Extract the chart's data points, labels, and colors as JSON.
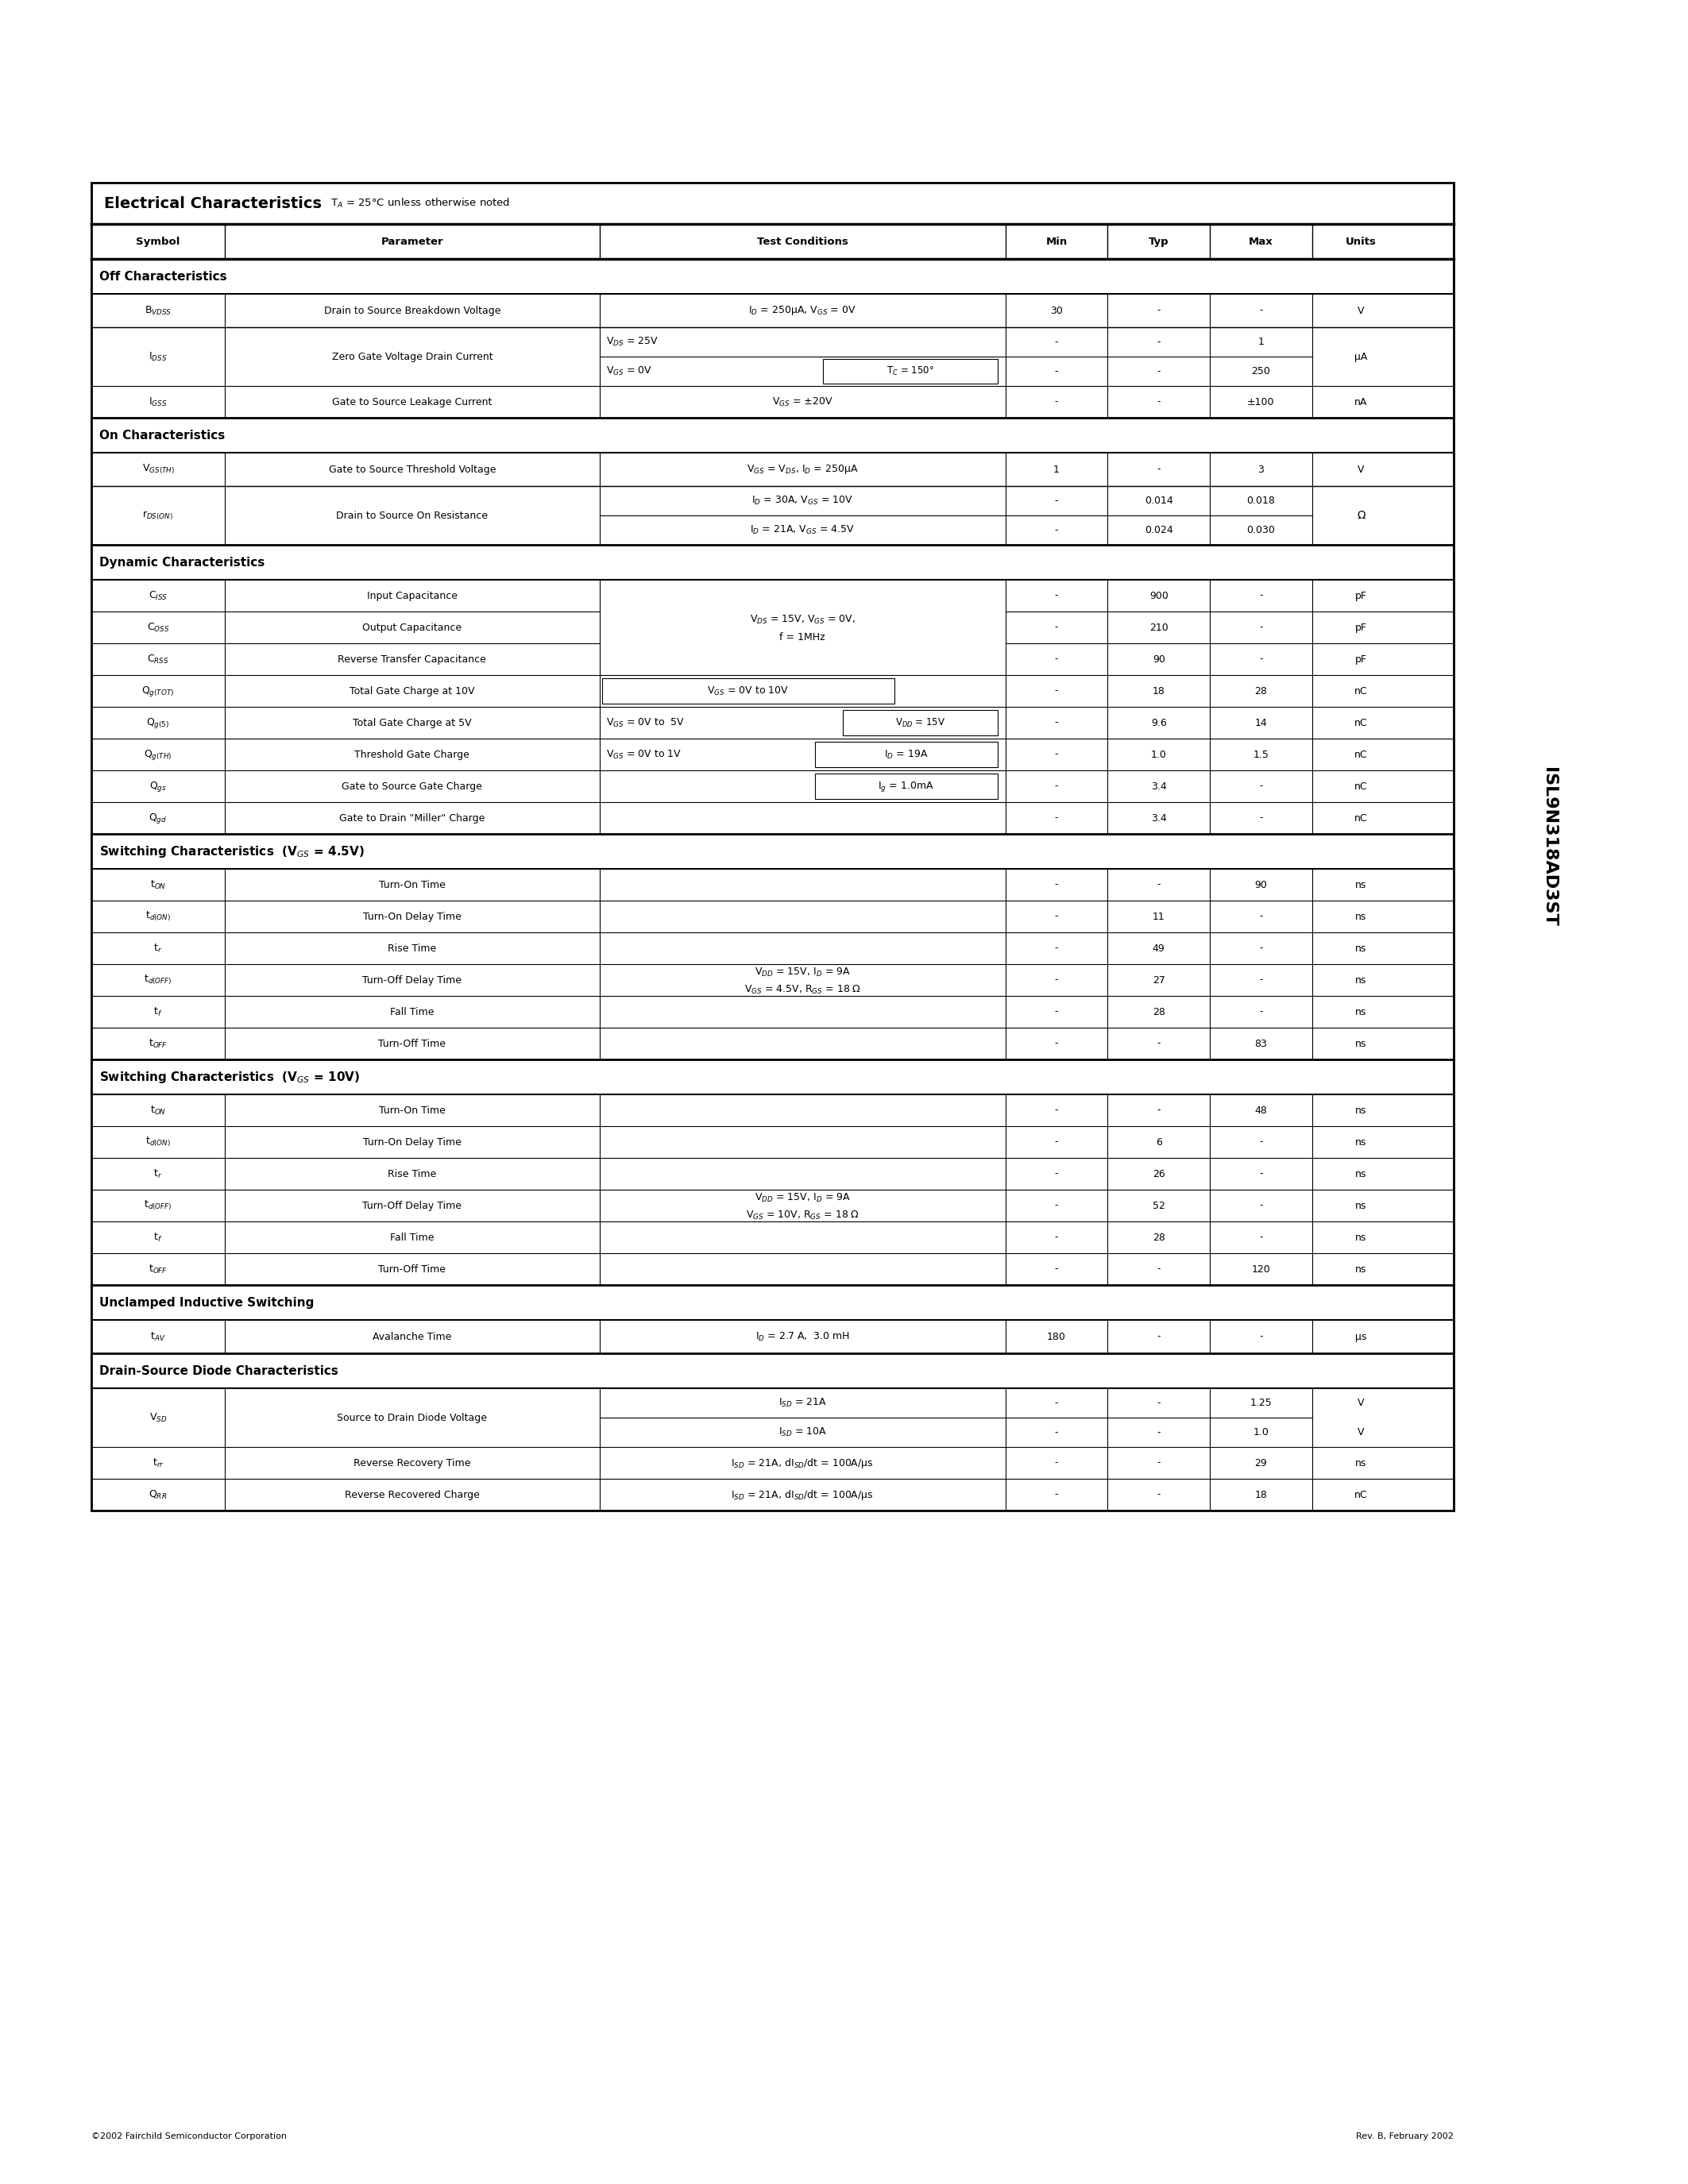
{
  "title_bold": "Electrical Characteristics",
  "title_normal": " Tₐ = 25°C unless otherwise noted",
  "part_number": "ISL9N318AD3ST",
  "col_headers": [
    "Symbol",
    "Parameter",
    "Test Conditions",
    "Min",
    "Typ",
    "Max",
    "Units"
  ],
  "footer_left": "©2002 Fairchild Semiconductor Corporation",
  "footer_right": "Rev. B, February 2002",
  "bg_color": "#ffffff",
  "border_color": "#000000"
}
